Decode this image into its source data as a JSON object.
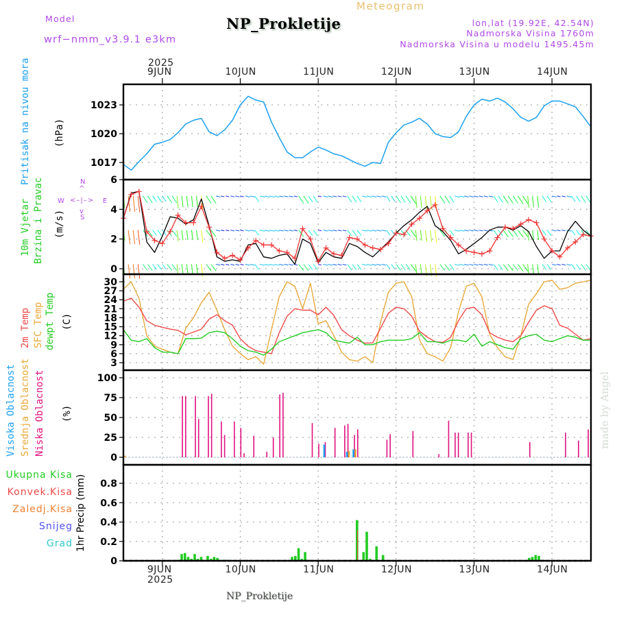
{
  "header": {
    "model_label": "Model",
    "model_name": "wrf−nmm_v3.9.1  e3km",
    "title": "NP_Prokletije",
    "subtitle": "Meteogram",
    "coords": "lon,lat (19.92E, 42.54N)",
    "elevation": "Nadmorska Visina 1760m",
    "model_elevation": "Nadmorska Visina u modelu 1495.45m"
  },
  "time_axis": {
    "year_label": "2025",
    "day_labels": [
      "9JUN",
      "10JUN",
      "11JUN",
      "12JUN",
      "13JUN",
      "14JUN"
    ],
    "start": "8JUN 12UTC",
    "end": "14JUN 12UTC"
  },
  "footer": {
    "station": "NP_Prokletije",
    "watermark": "made by Angel"
  },
  "colors": {
    "pressure": "#1aa0f0",
    "wind_label": "#22cc22",
    "wind_speed": "#ee3333",
    "wind_gust": "#000000",
    "temp_2m": "#f04848",
    "temp_sfc": "#e8a838",
    "temp_dew": "#22cc22",
    "cloud_high": "#1aa0f0",
    "cloud_mid": "#e8a838",
    "cloud_low": "#e0107f",
    "precip_total": "#22cc22",
    "precip_conv": "#f04848",
    "precip_frz": "#f08030",
    "snow": "#5050f0",
    "hail": "#30c8d0",
    "compass": "#b048e8"
  },
  "compass": {
    "n": "N",
    "s": "S",
    "w": "W",
    "e": "E"
  },
  "chart_data": [
    {
      "type": "line",
      "title": "Pritisak na nivou mora",
      "ylabel": "(hPa)",
      "yticks": [
        1017,
        1020,
        1023
      ],
      "ylim": [
        1015.2,
        1024.2
      ],
      "grid": true,
      "x_hours": [
        0,
        3,
        6,
        9,
        12,
        15,
        18,
        21,
        24,
        27,
        30,
        33,
        36,
        39,
        42,
        45,
        48,
        51,
        54,
        57,
        60,
        63,
        66,
        69,
        72,
        75,
        78,
        81,
        84,
        87,
        90,
        93,
        96,
        99,
        102,
        105,
        108,
        111,
        114,
        117,
        120,
        123,
        126,
        129,
        132,
        135,
        138,
        141,
        144
      ],
      "series": [
        {
          "name": "MSLP",
          "values": [
            1016.8,
            1016.2,
            1017.1,
            1017.9,
            1018.9,
            1019.1,
            1019.4,
            1020.1,
            1021.0,
            1021.4,
            1021.6,
            1020.2,
            1019.8,
            1020.4,
            1021.4,
            1023.0,
            1023.9,
            1023.5,
            1023.3,
            1021.2,
            1019.6,
            1018.1,
            1017.5,
            1017.5,
            1018.1,
            1018.6,
            1018.3,
            1017.9,
            1017.7,
            1017.3,
            1016.9,
            1016.6,
            1017.0,
            1016.9,
            1019.1,
            1020.1,
            1020.9,
            1021.2,
            1021.6,
            1021.0,
            1020.0,
            1019.7,
            1019.6,
            1020.2,
            1021.8,
            1023.0,
            1023.6,
            1023.4,
            1023.7
          ]
        }
      ],
      "series_ext": {
        "hours_tail": [
          147,
          150,
          153,
          156,
          159,
          162,
          165,
          168,
          171,
          174,
          177,
          180
        ],
        "values_tail": [
          1023.3,
          1022.6,
          1021.7,
          1021.3,
          1021.7,
          1022.9,
          1023.4,
          1023.4,
          1023.1,
          1022.8,
          1021.8,
          1020.7
        ]
      }
    },
    {
      "type": "line",
      "title": "10m Vjetar Brzina i Pravac",
      "ylabel": "(m/s)",
      "yticks": [
        0,
        2,
        4,
        6
      ],
      "ylim": [
        0,
        6
      ],
      "grid": true,
      "x_hours": [
        0,
        3,
        6,
        9,
        12,
        15,
        18,
        21,
        24,
        27,
        30,
        33,
        36,
        39,
        42,
        45,
        48,
        51,
        54,
        57,
        60,
        63,
        66,
        69,
        72,
        75,
        78,
        81,
        84,
        87,
        90,
        93,
        96,
        99,
        102,
        105,
        108,
        111,
        114,
        117,
        120,
        123,
        126,
        129,
        132,
        135,
        138,
        141,
        144,
        147,
        150,
        153,
        156,
        159,
        162,
        165,
        168,
        171,
        174,
        177,
        180
      ],
      "series": [
        {
          "name": "Wind speed",
          "values": [
            3.4,
            5.0,
            5.2,
            2.5,
            1.9,
            1.7,
            2.5,
            3.6,
            3.1,
            3.1,
            4.2,
            2.8,
            1.1,
            0.7,
            0.9,
            0.6,
            1.4,
            1.9,
            1.6,
            1.6,
            1.2,
            1.1,
            0.7,
            2.7,
            2.0,
            0.5,
            1.4,
            1.0,
            0.9,
            2.1,
            2.0,
            1.6,
            1.4,
            1.3,
            1.7,
            2.4,
            2.3,
            3.0,
            3.4,
            3.9,
            4.3,
            2.7,
            2.1,
            1.6,
            1.2,
            1.1,
            1.0,
            1.2,
            2.1,
            2.8,
            2.7,
            3.0,
            3.3,
            3.1,
            2.0,
            1.2,
            0.8,
            1.4,
            1.8,
            2.3,
            2.2
          ]
        },
        {
          "name": "Gust",
          "values": [
            3.4,
            5.1,
            5.2,
            1.8,
            1.1,
            2.2,
            3.5,
            3.4,
            3.0,
            3.3,
            4.7,
            2.9,
            0.8,
            0.5,
            0.6,
            0.5,
            1.6,
            1.7,
            0.8,
            0.7,
            0.9,
            1.0,
            0.3,
            2.0,
            1.7,
            0.4,
            1.1,
            0.8,
            0.7,
            1.7,
            1.5,
            1.1,
            0.8,
            1.3,
            1.8,
            2.4,
            2.9,
            3.3,
            3.8,
            4.2,
            2.9,
            2.5,
            1.9,
            1.0,
            1.3,
            1.7,
            2.1,
            2.6,
            2.8,
            2.8,
            2.6,
            2.9,
            2.5,
            1.5,
            0.7,
            1.2,
            1.2,
            2.5,
            3.2,
            2.6,
            2.2
          ]
        }
      ],
      "wind_barb_rows": 3
    },
    {
      "type": "line",
      "title": "2m Temp / SFC Temp / dewpt Temp",
      "ylabel": "(C)",
      "yticks": [
        3,
        6,
        9,
        12,
        15,
        18,
        21,
        24,
        27,
        30
      ],
      "ylim": [
        1.5,
        31.5
      ],
      "grid": true,
      "x_hours": [
        0,
        3,
        6,
        9,
        12,
        15,
        18,
        21,
        24,
        27,
        30,
        33,
        36,
        39,
        42,
        45,
        48,
        51,
        54,
        57,
        60,
        63,
        66,
        69,
        72,
        75,
        78,
        81,
        84,
        87,
        90,
        93,
        96,
        99,
        102,
        105,
        108,
        111,
        114,
        117,
        120,
        123,
        126,
        129,
        132,
        135,
        138,
        141,
        144,
        147,
        150,
        153,
        156,
        159,
        162,
        165,
        168,
        171,
        174,
        177,
        180
      ],
      "series": [
        {
          "name": "2m Temp",
          "values": [
            23.5,
            24.5,
            21.5,
            17.0,
            15.5,
            14.8,
            14.2,
            13.8,
            12.3,
            13.2,
            14.2,
            17.5,
            19.0,
            17.0,
            15.5,
            11.0,
            8.5,
            7.0,
            6.5,
            6.0,
            13.0,
            18.5,
            21.0,
            20.5,
            20.5,
            19.0,
            21.5,
            18.8,
            14.0,
            12.0,
            10.5,
            9.5,
            9.6,
            14.5,
            19.5,
            21.5,
            21.0,
            18.5,
            13.5,
            11.5,
            10.0,
            9.8,
            11.5,
            17.0,
            21.0,
            21.5,
            19.0,
            13.0,
            11.5,
            10.5,
            10.0,
            12.0,
            16.5,
            20.5,
            22.0,
            21.0,
            15.5,
            14.5,
            12.5,
            10.5,
            11.0
          ]
        },
        {
          "name": "SFC Temp",
          "values": [
            27.5,
            30.0,
            24.5,
            12.0,
            8.5,
            7.5,
            6.5,
            6.0,
            14.5,
            18.0,
            23.0,
            26.5,
            20.5,
            14.0,
            8.5,
            6.0,
            4.0,
            5.0,
            2.5,
            14.0,
            25.0,
            30.0,
            28.5,
            21.0,
            29.5,
            16.0,
            17.0,
            12.0,
            6.5,
            4.0,
            3.5,
            5.0,
            3.0,
            16.5,
            26.5,
            29.5,
            30.0,
            25.0,
            10.5,
            6.0,
            5.0,
            3.5,
            8.0,
            20.0,
            28.5,
            29.5,
            25.0,
            12.5,
            8.0,
            5.0,
            4.0,
            12.0,
            22.5,
            26.0,
            30.0,
            30.5,
            27.5,
            28.0,
            29.5,
            30.0,
            30.5
          ]
        },
        {
          "name": "dewpt Temp",
          "values": [
            14.0,
            10.5,
            10.0,
            11.0,
            8.0,
            6.5,
            6.5,
            6.0,
            11.0,
            11.0,
            11.2,
            13.0,
            13.5,
            13.0,
            11.0,
            8.5,
            7.0,
            6.5,
            5.5,
            7.5,
            10.0,
            11.0,
            12.0,
            13.0,
            13.5,
            14.0,
            13.0,
            10.5,
            10.0,
            9.5,
            11.5,
            9.0,
            9.0,
            10.0,
            10.5,
            10.5,
            10.5,
            11.0,
            13.0,
            10.0,
            10.0,
            9.5,
            10.5,
            10.5,
            10.0,
            12.5,
            8.5,
            10.0,
            9.0,
            8.0,
            7.5,
            11.0,
            12.0,
            12.5,
            10.5,
            10.0,
            11.0,
            12.0,
            11.5,
            10.5,
            10.5
          ]
        }
      ]
    },
    {
      "type": "bar",
      "title": "Visoka / Srednja / Niska Oblacnost",
      "ylabel": "(%)",
      "yticks": [
        0,
        25,
        50,
        75,
        100
      ],
      "ylim": [
        0,
        100
      ],
      "grid": true,
      "series": [
        {
          "name": "Niska Oblacnost",
          "points": [
            [
              18,
              77
            ],
            [
              19,
              77
            ],
            [
              22,
              77
            ],
            [
              23,
              48
            ],
            [
              26,
              77
            ],
            [
              27,
              80
            ],
            [
              30,
              45
            ],
            [
              31,
              28
            ],
            [
              34,
              45
            ],
            [
              36,
              37
            ],
            [
              37,
              5
            ],
            [
              40,
              27
            ],
            [
              44,
              7
            ],
            [
              46,
              25
            ],
            [
              48,
              79
            ],
            [
              49,
              81
            ],
            [
              58,
              43
            ],
            [
              60,
              17
            ],
            [
              62,
              19
            ],
            [
              65,
              37
            ],
            [
              68,
              40
            ],
            [
              69,
              42
            ],
            [
              71,
              28
            ],
            [
              72,
              35
            ],
            [
              81,
              22
            ],
            [
              82,
              29
            ],
            [
              89,
              33
            ],
            [
              97,
              4
            ],
            [
              100,
              46
            ],
            [
              102,
              31
            ],
            [
              103,
              31
            ],
            [
              106,
              31
            ],
            [
              107,
              31
            ],
            [
              125,
              19
            ],
            [
              136,
              31
            ],
            [
              140,
              21
            ],
            [
              143,
              35
            ]
          ]
        },
        {
          "name": "Visoka Oblacnost",
          "points": [
            [
              62,
              16
            ],
            [
              69,
              7
            ],
            [
              71,
              10
            ]
          ]
        },
        {
          "name": "Srednja Oblacnost",
          "points": [
            [
              0,
              2
            ],
            [
              69,
              8
            ],
            [
              71,
              10
            ]
          ]
        }
      ]
    },
    {
      "type": "bar",
      "title": "1hr Precip",
      "ylabel": "1hr Precip (mm)",
      "yticks": [
        0,
        0.2,
        0.4,
        0.6,
        0.8
      ],
      "ylim": [
        0,
        0.98
      ],
      "grid": true,
      "legend": [
        "Ukupna Kisa",
        "Konvek.Kisa",
        "Zaledj.Kisa",
        "Snijeg",
        "Grad"
      ],
      "series": [
        {
          "name": "Ukupna Kisa",
          "points": [
            [
              17,
              0.01
            ],
            [
              18,
              0.07
            ],
            [
              19,
              0.08
            ],
            [
              20,
              0.04
            ],
            [
              21,
              0.02
            ],
            [
              22,
              0.07
            ],
            [
              23,
              0.02
            ],
            [
              24,
              0.04
            ],
            [
              25,
              0.01
            ],
            [
              26,
              0.05
            ],
            [
              27,
              0.02
            ],
            [
              28,
              0.04
            ],
            [
              29,
              0.03
            ],
            [
              30,
              0.01
            ],
            [
              31,
              0.01
            ],
            [
              32,
              0.01
            ],
            [
              52,
              0.04
            ],
            [
              53,
              0.05
            ],
            [
              54,
              0.13
            ],
            [
              55,
              0.02
            ],
            [
              56,
              0.09
            ],
            [
              57,
              0.01
            ],
            [
              72,
              0.42
            ],
            [
              74,
              0.09
            ],
            [
              75,
              0.3
            ],
            [
              76,
              0.02
            ],
            [
              78,
              0.15
            ],
            [
              80,
              0.06
            ],
            [
              125,
              0.03
            ],
            [
              126,
              0.04
            ],
            [
              127,
              0.06
            ],
            [
              128,
              0.05
            ],
            [
              129,
              0.01
            ]
          ]
        },
        {
          "name": "Konvek.Kisa",
          "points": [
            [
              72,
              0.32
            ],
            [
              74,
              0.01
            ],
            [
              75,
              0.01
            ]
          ]
        }
      ]
    }
  ]
}
